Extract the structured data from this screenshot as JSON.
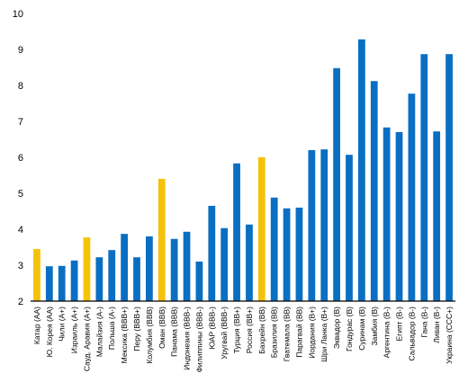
{
  "chart_data": {
    "type": "bar",
    "title": "",
    "xlabel": "",
    "ylabel": "",
    "ylim": [
      2,
      10
    ],
    "yticks": [
      "2",
      "3",
      "4",
      "5",
      "6",
      "7",
      "8",
      "9",
      "10"
    ],
    "grid": false,
    "legend": "none",
    "colors": {
      "default": "#0a6fc2",
      "highlight": "#f5c20a"
    },
    "categories": [
      "Катар (AA)",
      "Ю. Корея (AA)",
      "Чили (A+)",
      "Израиль (A+)",
      "Сауд. Аравия (A+)",
      "Малайзия (A-)",
      "Польша (A-)",
      "Мексика (BBB+)",
      "Перу (BBB+)",
      "Колумбия (BBB)",
      "Оман (BBB)",
      "Панама (BBB)",
      "Индонезия (BBB-)",
      "Филиппины (BBB-)",
      "ЮАР (BBB-)",
      "Уругвай (BBB-)",
      "Турция (BB+)",
      "Россия (BB+)",
      "Бахрейн (BB)",
      "Бразилия (BB)",
      "Гватемала (BB)",
      "Парагвай (BB)",
      "Иордания (B+)",
      "Шри Ланка (B+)",
      "Эквадор (B)",
      "Гондурас (B)",
      "Суринам (B)",
      "Замбия (B)",
      "Аргентина (B-)",
      "Египт (B-)",
      "Сальвадор (B-)",
      "Гана (B-)",
      "Ливан (B-)",
      "Украина (CCC+)"
    ],
    "values": [
      3.45,
      2.97,
      2.98,
      3.13,
      3.77,
      3.22,
      3.42,
      3.87,
      3.22,
      3.8,
      5.4,
      3.73,
      3.93,
      3.1,
      4.65,
      4.03,
      5.83,
      4.13,
      6.0,
      4.88,
      4.58,
      4.6,
      6.2,
      6.22,
      8.48,
      6.07,
      9.28,
      8.12,
      6.83,
      6.7,
      7.77,
      8.87,
      6.72,
      8.87
    ],
    "highlight": [
      true,
      false,
      false,
      false,
      true,
      false,
      false,
      false,
      false,
      false,
      true,
      false,
      false,
      false,
      false,
      false,
      false,
      false,
      true,
      false,
      false,
      false,
      false,
      false,
      false,
      false,
      false,
      false,
      false,
      false,
      false,
      false,
      false,
      false
    ]
  }
}
